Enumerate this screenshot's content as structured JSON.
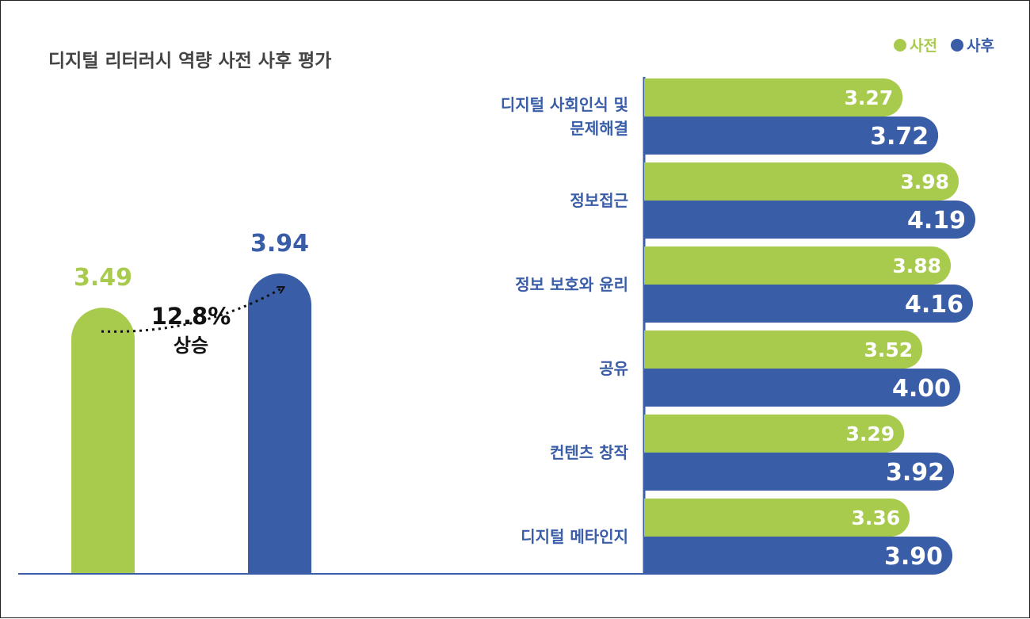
{
  "colors": {
    "pre": "#a8cb4e",
    "post": "#3a5da8",
    "axis": "#3a5da8",
    "text": "#444444"
  },
  "chart_data": [
    {
      "type": "bar",
      "title": "디지털 리터러시 역량 사전 사후 평가",
      "orientation": "vertical",
      "categories": [
        "사전",
        "사후"
      ],
      "values": [
        3.49,
        3.94
      ],
      "value_labels": [
        "3.49",
        "3.94"
      ],
      "annotation": {
        "value": "12.8%",
        "label": "상승"
      },
      "ylim": [
        0,
        4.5
      ],
      "grid": false
    },
    {
      "type": "bar",
      "orientation": "horizontal",
      "legend": {
        "position": "top-right",
        "entries": [
          "사전",
          "사후"
        ]
      },
      "categories": [
        [
          "디지털 사회인식 및",
          "문제해결"
        ],
        [
          "정보접근"
        ],
        [
          "정보 보호와 윤리"
        ],
        [
          "공유"
        ],
        [
          "컨텐츠 창작"
        ],
        [
          "디지털 메타인지"
        ]
      ],
      "series": [
        {
          "name": "사전",
          "values": [
            3.27,
            3.98,
            3.88,
            3.52,
            3.29,
            3.36
          ],
          "labels": [
            "3.27",
            "3.98",
            "3.88",
            "3.52",
            "3.29",
            "3.36"
          ]
        },
        {
          "name": "사후",
          "values": [
            3.72,
            4.19,
            4.16,
            4.0,
            3.92,
            3.9
          ],
          "labels": [
            "3.72",
            "4.19",
            "4.16",
            "4.00",
            "3.92",
            "3.90"
          ]
        }
      ],
      "xlim": [
        0,
        4.85
      ],
      "grid": false
    }
  ]
}
